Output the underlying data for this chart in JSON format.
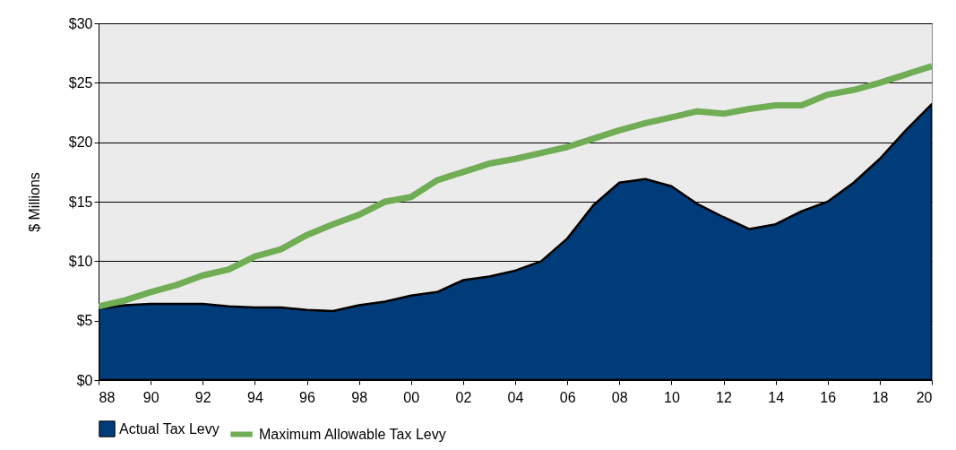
{
  "chart_data": {
    "type": "area",
    "ylabel": "$ Millions",
    "categories": [
      "88",
      null,
      "90",
      null,
      "92",
      null,
      "94",
      null,
      "96",
      null,
      "98",
      null,
      "00",
      null,
      "02",
      null,
      "04",
      null,
      "06",
      null,
      "08",
      null,
      "10",
      null,
      "12",
      null,
      "14",
      null,
      "16",
      null,
      "18",
      null,
      "20"
    ],
    "series": [
      {
        "name": "Actual Tax Levy",
        "color": "#003b7a",
        "values": [
          6.0,
          6.3,
          6.4,
          6.4,
          6.4,
          6.2,
          6.1,
          6.1,
          5.9,
          5.8,
          6.3,
          6.6,
          7.1,
          7.4,
          8.4,
          8.7,
          9.2,
          10.0,
          11.9,
          14.7,
          16.6,
          16.9,
          16.3,
          14.8,
          13.7,
          12.7,
          13.1,
          14.2,
          15.0,
          16.6,
          18.6,
          21.0,
          23.2
        ]
      },
      {
        "name": "Maximum Allowable Tax Levy",
        "type": "line",
        "color": "#70ad55",
        "values": [
          6.2,
          6.7,
          7.4,
          8.0,
          8.8,
          9.3,
          10.4,
          11.0,
          12.2,
          13.1,
          13.9,
          15.0,
          15.4,
          16.8,
          17.5,
          18.2,
          18.6,
          19.1,
          19.6,
          20.3,
          21.0,
          21.6,
          22.1,
          22.6,
          22.4,
          22.8,
          23.1,
          23.1,
          24.0,
          24.4,
          25.0,
          25.7,
          26.4
        ]
      }
    ],
    "ylim": [
      0,
      30
    ],
    "yticks": [
      {
        "value": 0,
        "label": "$0"
      },
      {
        "value": 5,
        "label": "$5"
      },
      {
        "value": 10,
        "label": "$10"
      },
      {
        "value": 15,
        "label": "$15"
      },
      {
        "value": 20,
        "label": "$20"
      },
      {
        "value": 25,
        "label": "$25"
      },
      {
        "value": 30,
        "label": "$30"
      }
    ],
    "grid": "y",
    "legend": "bottom"
  }
}
